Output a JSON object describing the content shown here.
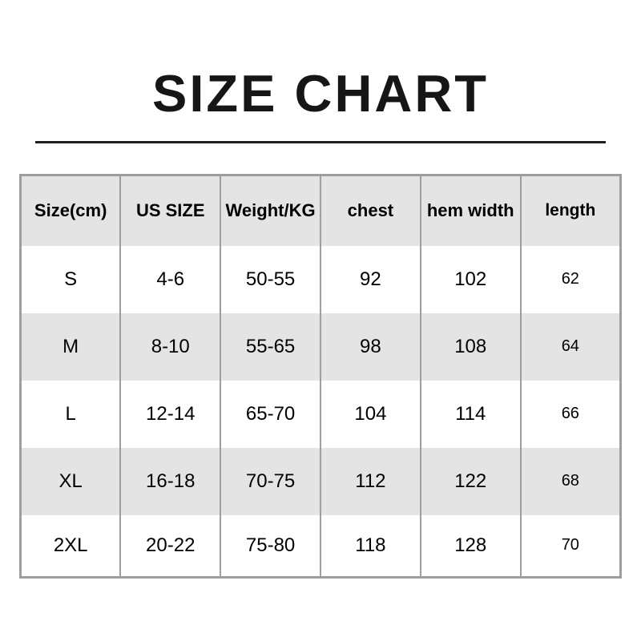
{
  "page": {
    "title": "SIZE CHART"
  },
  "table": {
    "columns": [
      "Size(cm)",
      "US SIZE",
      "Weight/KG",
      "chest",
      "hem width",
      "length"
    ],
    "rows": [
      [
        "S",
        "4-6",
        "50-55",
        "92",
        "102",
        "62"
      ],
      [
        "M",
        "8-10",
        "55-65",
        "98",
        "108",
        "64"
      ],
      [
        "L",
        "12-14",
        "65-70",
        "104",
        "114",
        "66"
      ],
      [
        "XL",
        "16-18",
        "70-75",
        "112",
        "122",
        "68"
      ],
      [
        "2XL",
        "20-22",
        "75-80",
        "118",
        "128",
        "70"
      ]
    ]
  },
  "colors": {
    "header_bg": "#e4e4e4",
    "alt_row_bg": "#e4e4e4",
    "row_bg": "#ffffff",
    "grid_border": "#9e9e9e",
    "divider": "#1f1f1f",
    "title_text": "#161616",
    "cell_text": "#000000"
  }
}
